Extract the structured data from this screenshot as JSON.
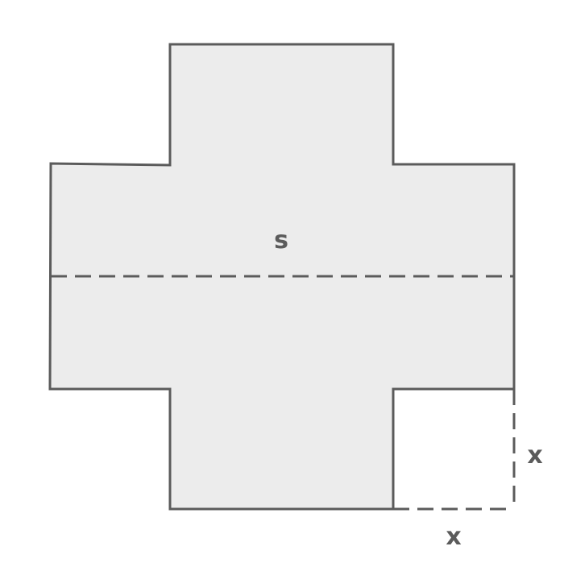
{
  "diagram": {
    "labels": {
      "side": "s",
      "corner_height": "x",
      "corner_width": "x"
    },
    "colors": {
      "fill": "#ececec",
      "stroke": "#5b5b5b",
      "background": "#ffffff"
    }
  }
}
